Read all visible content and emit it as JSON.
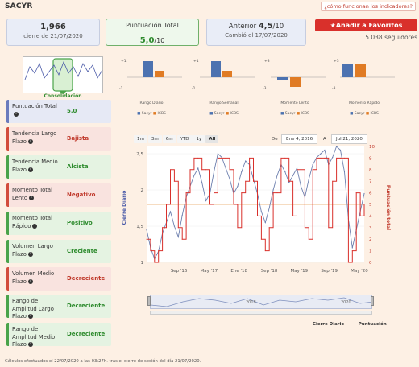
{
  "header": {
    "title": "SACYR",
    "help_link": "¿cómo funcionan los indicadores?"
  },
  "price_card": {
    "value": "1,966",
    "sub": "cierre de 21/07/2020"
  },
  "score_card": {
    "label": "Puntuación Total",
    "score": "5,0",
    "suffix": "/10"
  },
  "prev_card": {
    "label": "Anterior",
    "score": "4,5",
    "suffix": "/10",
    "sub": "Cambió el 17/07/2020"
  },
  "favorites": {
    "button": "Añadir a Favoritos",
    "followers": "5.038 seguidores"
  },
  "gauge": {
    "label": "Consolidación"
  },
  "indicators": [
    {
      "label": "Puntuación Total",
      "value": "5,0",
      "tone": "b"
    },
    {
      "label": "Tendencia Largo Plazo",
      "value": "Bajista",
      "tone": "r"
    },
    {
      "label": "Tendencia Medio Plazo",
      "value": "Alcista",
      "tone": "g"
    },
    {
      "label": "Momento Total Lento",
      "value": "Negativo",
      "tone": "r"
    },
    {
      "label": "Momento Total Rápido",
      "value": "Positivo",
      "tone": "g"
    },
    {
      "label": "Volumen Largo Plazo",
      "value": "Creciente",
      "tone": "g"
    },
    {
      "label": "Volumen Medio Plazo",
      "value": "Decreciente",
      "tone": "r"
    },
    {
      "label": "Rango de Amplitud Largo Plazo",
      "value": "Decreciente",
      "tone": "g"
    },
    {
      "label": "Rango de Amplitud Medio Plazo",
      "value": "Decreciente",
      "tone": "g"
    }
  ],
  "mini_charts": [
    {
      "title": "Rango Diario",
      "yticks": [
        "+1",
        "-1"
      ],
      "legend": [
        "Sacyr",
        "ICBS"
      ]
    },
    {
      "title": "Rango Semanal",
      "yticks": [
        "+1",
        "-1"
      ],
      "legend": [
        "Sacyr",
        "ICBS"
      ]
    },
    {
      "title": "Momento Lento",
      "yticks": [
        "+3",
        "-3"
      ],
      "legend": [
        "Sacyr",
        "ICBS"
      ]
    },
    {
      "title": "Momento Rápido",
      "yticks": [
        "+3",
        "-3"
      ],
      "legend": [
        "Sacyr",
        "ICBS"
      ]
    }
  ],
  "range_buttons": [
    "1m",
    "3m",
    "6m",
    "YTD",
    "1y",
    "All"
  ],
  "date_range": {
    "from_label": "De",
    "from": "Ene 4, 2016",
    "to_label": "A",
    "to": "Jul 21, 2020"
  },
  "navigator": {
    "labels": [
      "2018",
      "2020"
    ]
  },
  "colors": {
    "price": "#6d7fae",
    "score": "#d9302b",
    "accent_green": "#4aa34a",
    "accent_red": "#d24c3b"
  },
  "chart_data": {
    "type": "line",
    "xlabel": "",
    "ylabel_left": "Cierre Diario",
    "ylabel_right": "Puntuación total",
    "x_ticks": [
      "Sep '16",
      "May '17",
      "Ene '18",
      "Sep '18",
      "May '19",
      "Sep '19",
      "May '20"
    ],
    "y_left_ticks": [
      1,
      1.5,
      2,
      2.5
    ],
    "y_right_ticks": [
      0,
      1,
      2,
      3,
      4,
      5,
      6,
      7,
      8,
      9,
      10
    ],
    "ylim_left": [
      1,
      2.6
    ],
    "ylim_right": [
      0,
      10
    ],
    "reference_line": 5,
    "legend_position": "bottom-right",
    "series": [
      {
        "name": "Cierre Diario",
        "axis": "left",
        "values": [
          1.45,
          1.2,
          1.05,
          1.15,
          1.4,
          1.55,
          1.7,
          1.5,
          1.35,
          1.65,
          1.9,
          2.05,
          2.2,
          2.3,
          2.1,
          1.85,
          1.95,
          2.25,
          2.5,
          2.45,
          2.3,
          2.15,
          1.95,
          2.05,
          2.25,
          2.4,
          2.35,
          2.15,
          1.95,
          1.7,
          1.55,
          1.75,
          2.0,
          2.2,
          2.35,
          2.25,
          2.1,
          2.2,
          2.3,
          2.05,
          1.9,
          2.15,
          2.35,
          2.45,
          2.5,
          2.55,
          2.35,
          2.45,
          2.6,
          2.55,
          2.25,
          1.6,
          1.2,
          1.45,
          1.7,
          1.95
        ]
      },
      {
        "name": "Puntuación",
        "axis": "right",
        "values": [
          2,
          1,
          0,
          1,
          3,
          5,
          8,
          7,
          3,
          2,
          6,
          8,
          9,
          9,
          8,
          8,
          5,
          6,
          9,
          9,
          9,
          8,
          5,
          3,
          6,
          7,
          9,
          7,
          4,
          2,
          1,
          3,
          6,
          6,
          9,
          9,
          7,
          4,
          8,
          8,
          3,
          2,
          8,
          9,
          9,
          9,
          3,
          7,
          9,
          9,
          9,
          0,
          1,
          6,
          4,
          5
        ]
      }
    ]
  },
  "footer": "Cálculos efectuados el 22/07/2020 a las 03:27h. tras el cierre de sesión del día 21/07/2020."
}
